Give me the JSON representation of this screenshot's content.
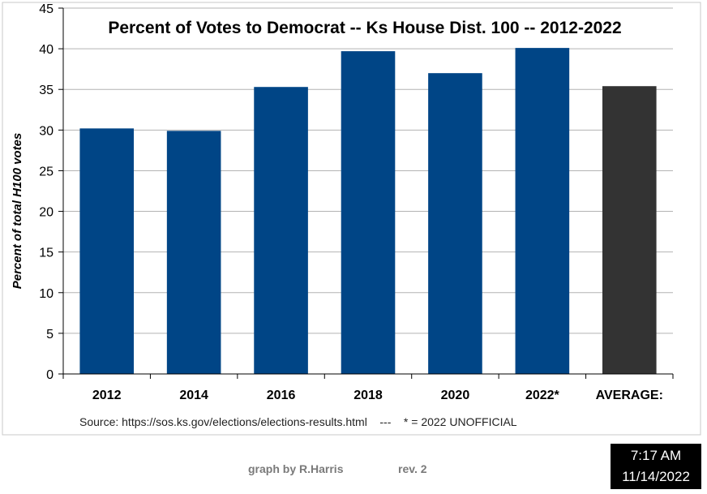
{
  "chart_data": {
    "type": "bar",
    "title": "Percent of Votes to Democrat -- Ks House Dist. 100 -- 2012-2022",
    "ylabel": "Percent of total H100 votes",
    "xlabel": "",
    "ylim": [
      0,
      45
    ],
    "yticks": [
      "0",
      "5",
      "10",
      "15",
      "20",
      "25",
      "30",
      "35",
      "40",
      "45"
    ],
    "categories": [
      "2012",
      "2014",
      "2016",
      "2018",
      "2020",
      "2022*",
      "AVERAGE:"
    ],
    "values": [
      30.2,
      29.9,
      35.3,
      39.7,
      37.0,
      40.1,
      35.4
    ],
    "bar_colors": [
      "#004586",
      "#004586",
      "#004586",
      "#004586",
      "#004586",
      "#004586",
      "#333333"
    ],
    "grid": true,
    "legend": "none",
    "source_note": "Source: https://sos.ks.gov/elections/elections-results.html    ---    * = 2022 UNOFFICIAL"
  },
  "footer": {
    "credit": "graph by R.Harris",
    "revision": "rev. 2"
  },
  "clock": {
    "time": "7:17 AM",
    "date": "11/14/2022"
  },
  "colors": {
    "bar": "#004586",
    "average_bar": "#333333",
    "grid": "#b3b3b3"
  }
}
